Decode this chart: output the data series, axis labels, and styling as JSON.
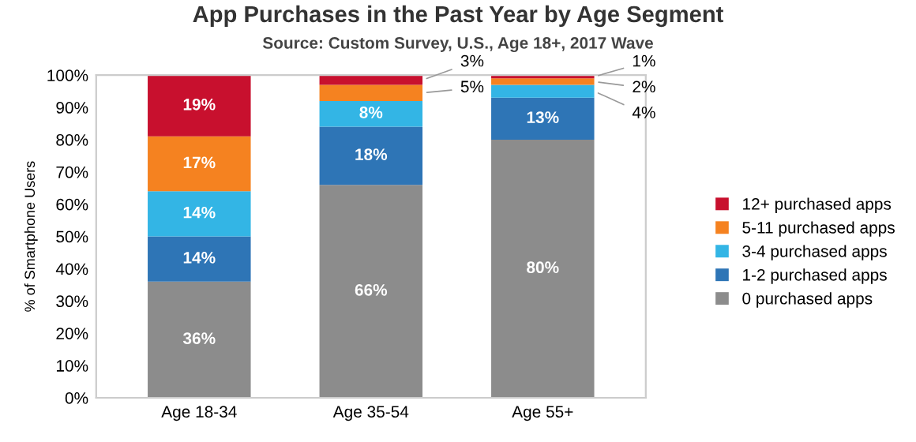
{
  "chart_data": {
    "type": "bar",
    "stacked": true,
    "title": "App Purchases in the Past Year by Age Segment",
    "subtitle": "Source: Custom Survey, U.S., Age 18+, 2017 Wave",
    "ylabel": "% of Smartphone Users",
    "categories": [
      "Age 18-34",
      "Age 35-54",
      "Age 55+"
    ],
    "series": [
      {
        "name": "0 purchased apps",
        "color": "#8c8c8c",
        "values": [
          36,
          66,
          80
        ],
        "value_labels": [
          "36%",
          "66%",
          "80%"
        ]
      },
      {
        "name": "1-2 purchased apps",
        "color": "#2e75b6",
        "values": [
          14,
          18,
          13
        ],
        "value_labels": [
          "14%",
          "18%",
          "13%"
        ]
      },
      {
        "name": "3-4 purchased apps",
        "color": "#33b5e5",
        "values": [
          14,
          8,
          4
        ],
        "value_labels": [
          "14%",
          "8%",
          "4%"
        ]
      },
      {
        "name": "5-11 purchased apps",
        "color": "#f58220",
        "values": [
          17,
          5,
          2
        ],
        "value_labels": [
          "17%",
          "5%",
          "2%"
        ]
      },
      {
        "name": "12+ purchased apps",
        "color": "#c8102e",
        "values": [
          19,
          3,
          1
        ],
        "value_labels": [
          "19%",
          "3%",
          "1%"
        ]
      }
    ],
    "ylim": [
      0,
      100
    ],
    "yticks": [
      {
        "value": 0,
        "label": "0%"
      },
      {
        "value": 10,
        "label": "10%"
      },
      {
        "value": 20,
        "label": "20%"
      },
      {
        "value": 30,
        "label": "30%"
      },
      {
        "value": 40,
        "label": "40%"
      },
      {
        "value": 50,
        "label": "50%"
      },
      {
        "value": 60,
        "label": "60%"
      },
      {
        "value": 70,
        "label": "70%"
      },
      {
        "value": 80,
        "label": "80%"
      },
      {
        "value": 90,
        "label": "90%"
      },
      {
        "value": 100,
        "label": "100%"
      }
    ],
    "grid": false,
    "legend": "right"
  }
}
